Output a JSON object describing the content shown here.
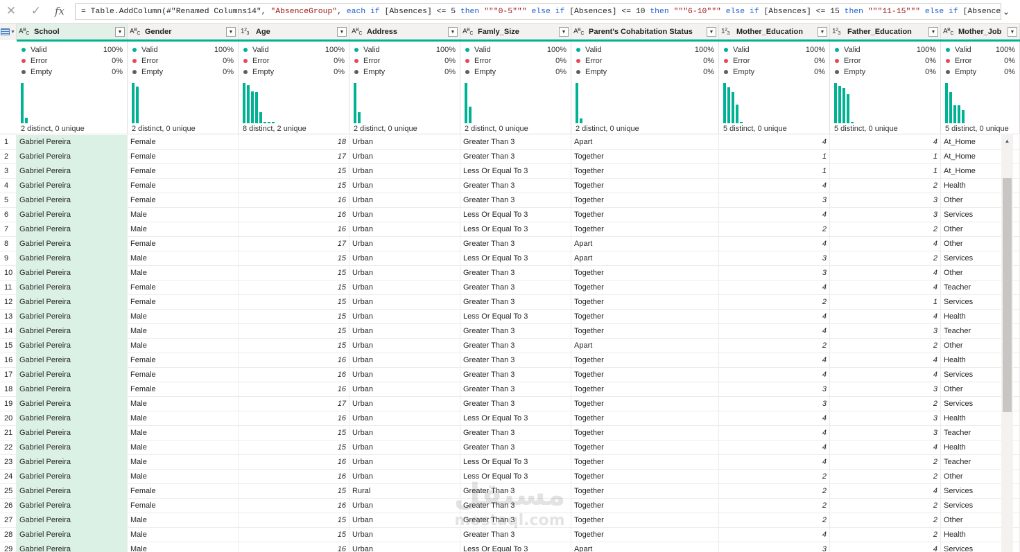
{
  "formula_bar": {
    "cancel_icon": "close-icon",
    "commit_icon": "check-icon",
    "fx_label": "fx",
    "formula_parts": [
      {
        "t": "= Table.AddColumn(#\"Renamed Columns14\", ",
        "c": "plain"
      },
      {
        "t": "\"AbsenceGroup\"",
        "c": "str"
      },
      {
        "t": ", ",
        "c": "plain"
      },
      {
        "t": "each if",
        "c": "kw"
      },
      {
        "t": " [Absences] <= 5 ",
        "c": "plain"
      },
      {
        "t": "then",
        "c": "kw"
      },
      {
        "t": " ",
        "c": "plain"
      },
      {
        "t": "\"\"\"0-5\"\"\"",
        "c": "str"
      },
      {
        "t": " ",
        "c": "plain"
      },
      {
        "t": "else if",
        "c": "kw"
      },
      {
        "t": " [Absences] <= 10 ",
        "c": "plain"
      },
      {
        "t": "then",
        "c": "kw"
      },
      {
        "t": " ",
        "c": "plain"
      },
      {
        "t": "\"\"\"6-10\"\"\"",
        "c": "str"
      },
      {
        "t": " ",
        "c": "plain"
      },
      {
        "t": "else if",
        "c": "kw"
      },
      {
        "t": " [Absences] <= 15 ",
        "c": "plain"
      },
      {
        "t": "then",
        "c": "kw"
      },
      {
        "t": " ",
        "c": "plain"
      },
      {
        "t": "\"\"\"11-15\"\"\"",
        "c": "str"
      },
      {
        "t": " ",
        "c": "plain"
      },
      {
        "t": "else if",
        "c": "kw"
      },
      {
        "t": " [Absences]",
        "c": "plain"
      }
    ],
    "expand_icon": "chevron-down-icon"
  },
  "colors": {
    "accent_teal": "#00b294",
    "error_red": "#e74856",
    "empty_gray": "#605e5c",
    "selected_column": "#dcf1e5"
  },
  "quality_labels": {
    "valid": "Valid",
    "error": "Error",
    "empty": "Empty"
  },
  "columns": [
    {
      "name": "School",
      "type": "text",
      "selected": true,
      "valid": "100%",
      "error": "0%",
      "empty": "0%",
      "distinct": "2 distinct, 0 unique",
      "histogram": [
        1.0,
        0.14
      ]
    },
    {
      "name": "Gender",
      "type": "text",
      "valid": "100%",
      "error": "0%",
      "empty": "0%",
      "distinct": "2 distinct, 0 unique",
      "histogram": [
        1.0,
        0.92
      ]
    },
    {
      "name": "Age",
      "type": "number",
      "valid": "100%",
      "error": "0%",
      "empty": "0%",
      "distinct": "8 distinct, 2 unique",
      "histogram": [
        1.0,
        0.95,
        0.8,
        0.78,
        0.28,
        0.04,
        0.03,
        0.03
      ]
    },
    {
      "name": "Address",
      "type": "text",
      "valid": "100%",
      "error": "0%",
      "empty": "0%",
      "distinct": "2 distinct, 0 unique",
      "histogram": [
        1.0,
        0.28
      ]
    },
    {
      "name": "Famly_Size",
      "type": "text",
      "valid": "100%",
      "error": "0%",
      "empty": "0%",
      "distinct": "2 distinct, 0 unique",
      "histogram": [
        1.0,
        0.42
      ]
    },
    {
      "name": "Parent's Cohabitation Status",
      "type": "text",
      "valid": "100%",
      "error": "0%",
      "empty": "0%",
      "distinct": "2 distinct, 0 unique",
      "histogram": [
        1.0,
        0.12
      ]
    },
    {
      "name": "Mother_Education",
      "type": "number",
      "valid": "100%",
      "error": "0%",
      "empty": "0%",
      "distinct": "5 distinct, 0 unique",
      "histogram": [
        1.0,
        0.9,
        0.78,
        0.46,
        0.03
      ]
    },
    {
      "name": "Father_Education",
      "type": "number",
      "valid": "100%",
      "error": "0%",
      "empty": "0%",
      "distinct": "5 distinct, 0 unique",
      "histogram": [
        1.0,
        0.93,
        0.88,
        0.72,
        0.03
      ]
    },
    {
      "name": "Mother_Job",
      "type": "text",
      "valid": "100%",
      "error": "0%",
      "empty": "0%",
      "distinct": "5 distinct, 0 unique",
      "histogram": [
        1.0,
        0.77,
        0.45,
        0.45,
        0.33
      ]
    }
  ],
  "rows": [
    [
      "1",
      "Gabriel Pereira",
      "Female",
      "18",
      "Urban",
      "Greater Than 3",
      "Apart",
      "4",
      "4",
      "At_Home"
    ],
    [
      "2",
      "Gabriel Pereira",
      "Female",
      "17",
      "Urban",
      "Greater Than 3",
      "Together",
      "1",
      "1",
      "At_Home"
    ],
    [
      "3",
      "Gabriel Pereira",
      "Female",
      "15",
      "Urban",
      "Less Or Equal To 3",
      "Together",
      "1",
      "1",
      "At_Home"
    ],
    [
      "4",
      "Gabriel Pereira",
      "Female",
      "15",
      "Urban",
      "Greater Than 3",
      "Together",
      "4",
      "2",
      "Health"
    ],
    [
      "5",
      "Gabriel Pereira",
      "Female",
      "16",
      "Urban",
      "Greater Than 3",
      "Together",
      "3",
      "3",
      "Other"
    ],
    [
      "6",
      "Gabriel Pereira",
      "Male",
      "16",
      "Urban",
      "Less Or Equal To 3",
      "Together",
      "4",
      "3",
      "Services"
    ],
    [
      "7",
      "Gabriel Pereira",
      "Male",
      "16",
      "Urban",
      "Less Or Equal To 3",
      "Together",
      "2",
      "2",
      "Other"
    ],
    [
      "8",
      "Gabriel Pereira",
      "Female",
      "17",
      "Urban",
      "Greater Than 3",
      "Apart",
      "4",
      "4",
      "Other"
    ],
    [
      "9",
      "Gabriel Pereira",
      "Male",
      "15",
      "Urban",
      "Less Or Equal To 3",
      "Apart",
      "3",
      "2",
      "Services"
    ],
    [
      "10",
      "Gabriel Pereira",
      "Male",
      "15",
      "Urban",
      "Greater Than 3",
      "Together",
      "3",
      "4",
      "Other"
    ],
    [
      "11",
      "Gabriel Pereira",
      "Female",
      "15",
      "Urban",
      "Greater Than 3",
      "Together",
      "4",
      "4",
      "Teacher"
    ],
    [
      "12",
      "Gabriel Pereira",
      "Female",
      "15",
      "Urban",
      "Greater Than 3",
      "Together",
      "2",
      "1",
      "Services"
    ],
    [
      "13",
      "Gabriel Pereira",
      "Male",
      "15",
      "Urban",
      "Less Or Equal To 3",
      "Together",
      "4",
      "4",
      "Health"
    ],
    [
      "14",
      "Gabriel Pereira",
      "Male",
      "15",
      "Urban",
      "Greater Than 3",
      "Together",
      "4",
      "3",
      "Teacher"
    ],
    [
      "15",
      "Gabriel Pereira",
      "Male",
      "15",
      "Urban",
      "Greater Than 3",
      "Apart",
      "2",
      "2",
      "Other"
    ],
    [
      "16",
      "Gabriel Pereira",
      "Female",
      "16",
      "Urban",
      "Greater Than 3",
      "Together",
      "4",
      "4",
      "Health"
    ],
    [
      "17",
      "Gabriel Pereira",
      "Female",
      "16",
      "Urban",
      "Greater Than 3",
      "Together",
      "4",
      "4",
      "Services"
    ],
    [
      "18",
      "Gabriel Pereira",
      "Female",
      "16",
      "Urban",
      "Greater Than 3",
      "Together",
      "3",
      "3",
      "Other"
    ],
    [
      "19",
      "Gabriel Pereira",
      "Male",
      "17",
      "Urban",
      "Greater Than 3",
      "Together",
      "3",
      "2",
      "Services"
    ],
    [
      "20",
      "Gabriel Pereira",
      "Male",
      "16",
      "Urban",
      "Less Or Equal To 3",
      "Together",
      "4",
      "3",
      "Health"
    ],
    [
      "21",
      "Gabriel Pereira",
      "Male",
      "15",
      "Urban",
      "Greater Than 3",
      "Together",
      "4",
      "3",
      "Teacher"
    ],
    [
      "22",
      "Gabriel Pereira",
      "Male",
      "15",
      "Urban",
      "Greater Than 3",
      "Together",
      "4",
      "4",
      "Health"
    ],
    [
      "23",
      "Gabriel Pereira",
      "Male",
      "16",
      "Urban",
      "Less Or Equal To 3",
      "Together",
      "4",
      "2",
      "Teacher"
    ],
    [
      "24",
      "Gabriel Pereira",
      "Male",
      "16",
      "Urban",
      "Less Or Equal To 3",
      "Together",
      "2",
      "2",
      "Other"
    ],
    [
      "25",
      "Gabriel Pereira",
      "Female",
      "15",
      "Rural",
      "Greater Than 3",
      "Together",
      "2",
      "4",
      "Services"
    ],
    [
      "26",
      "Gabriel Pereira",
      "Female",
      "16",
      "Urban",
      "Greater Than 3",
      "Together",
      "2",
      "2",
      "Services"
    ],
    [
      "27",
      "Gabriel Pereira",
      "Male",
      "15",
      "Urban",
      "Greater Than 3",
      "Together",
      "2",
      "2",
      "Other"
    ],
    [
      "28",
      "Gabriel Pereira",
      "Male",
      "15",
      "Urban",
      "Greater Than 3",
      "Together",
      "4",
      "2",
      "Health"
    ],
    [
      "29",
      "Gabriel Pereira",
      "Male",
      "16",
      "Urban",
      "Less Or Equal To 3",
      "Apart",
      "3",
      "4",
      "Services"
    ]
  ],
  "watermark": {
    "arabic": "مستقل",
    "latin": "mostaql.com"
  }
}
